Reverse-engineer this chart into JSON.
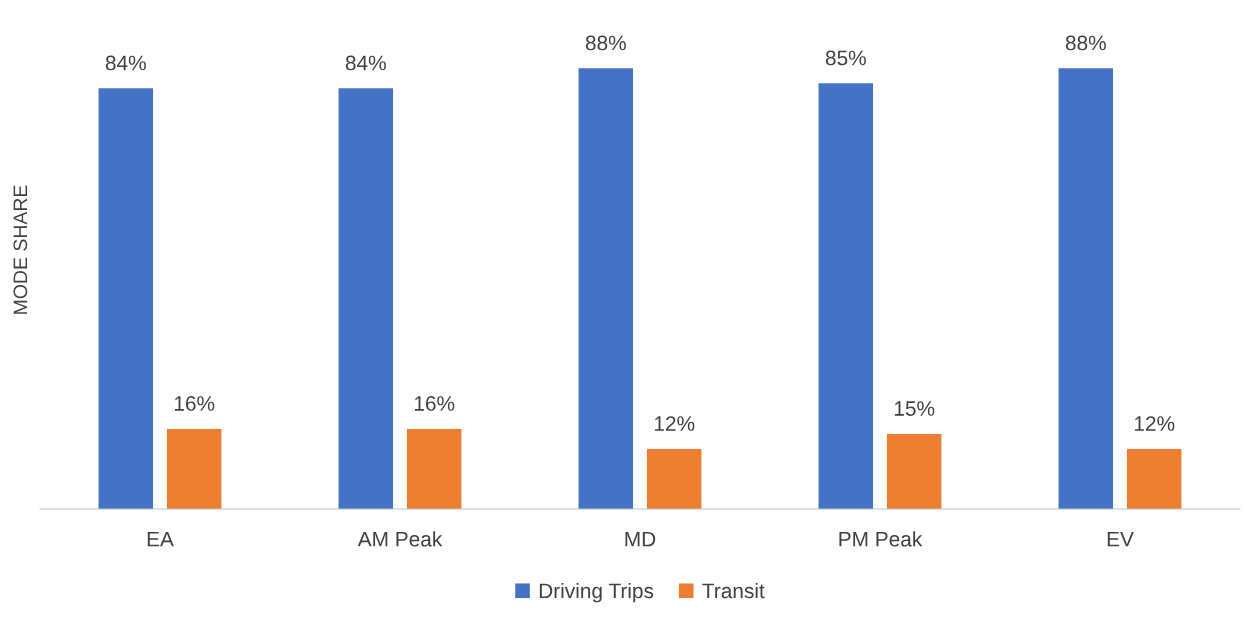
{
  "chart_data": {
    "type": "bar",
    "ylabel": "MODE SHARE",
    "categories": [
      "EA",
      "AM Peak",
      "MD",
      "PM Peak",
      "EV"
    ],
    "series": [
      {
        "name": "Driving Trips",
        "color": "#4472c4",
        "values": [
          84,
          84,
          88,
          85,
          88
        ],
        "value_labels": [
          "84%",
          "84%",
          "88%",
          "85%",
          "88%"
        ]
      },
      {
        "name": "Transit",
        "color": "#ed7d31",
        "values": [
          16,
          16,
          12,
          15,
          12
        ],
        "value_labels": [
          "16%",
          "16%",
          "12%",
          "15%",
          "12%"
        ]
      }
    ],
    "legend": "bottom",
    "grid": false
  }
}
